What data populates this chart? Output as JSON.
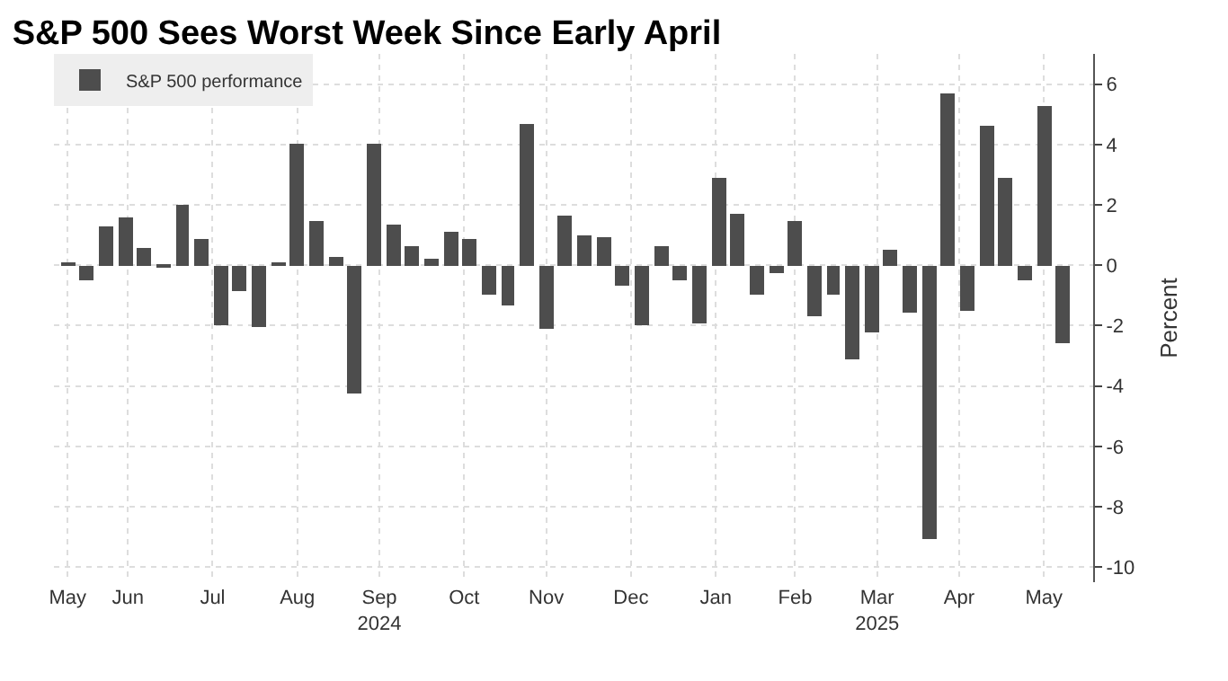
{
  "chart_data": {
    "type": "bar",
    "title": "S&P 500 Sees Worst Week Since Early April",
    "ylabel": "Percent",
    "x": [
      "2024-05-24",
      "2024-05-31",
      "2024-06-07",
      "2024-06-14",
      "2024-06-21",
      "2024-06-28",
      "2024-07-05",
      "2024-07-12",
      "2024-07-19",
      "2024-07-26",
      "2024-08-02",
      "2024-08-09",
      "2024-08-16",
      "2024-08-23",
      "2024-08-30",
      "2024-09-06",
      "2024-09-13",
      "2024-09-20",
      "2024-09-27",
      "2024-10-04",
      "2024-10-11",
      "2024-10-18",
      "2024-10-25",
      "2024-11-01",
      "2024-11-08",
      "2024-11-15",
      "2024-11-22",
      "2024-11-29",
      "2024-12-06",
      "2024-12-13",
      "2024-12-20",
      "2024-12-27",
      "2025-01-03",
      "2025-01-10",
      "2025-01-17",
      "2025-01-24",
      "2025-01-31",
      "2025-02-07",
      "2025-02-14",
      "2025-02-21",
      "2025-02-28",
      "2025-03-07",
      "2025-03-14",
      "2025-03-21",
      "2025-03-28",
      "2025-04-04",
      "2025-04-11",
      "2025-04-18",
      "2025-04-25",
      "2025-05-02",
      "2025-05-09",
      "2025-05-16",
      "2025-05-23"
    ],
    "series": [
      {
        "name": "S&P 500 performance",
        "color": "#4d4d4d",
        "values": [
          0.05,
          -0.5,
          1.3,
          1.6,
          0.6,
          -0.1,
          2.0,
          0.85,
          -2.0,
          -0.85,
          -2.05,
          0.05,
          4.0,
          1.45,
          0.25,
          -4.25,
          4.05,
          1.35,
          0.65,
          0.2,
          1.1,
          0.85,
          -0.95,
          -1.35,
          4.7,
          -2.1,
          1.65,
          1.0,
          0.95,
          -0.65,
          -2.0,
          0.65,
          -0.5,
          -1.95,
          2.9,
          1.7,
          -1.0,
          -0.25,
          1.45,
          -1.7,
          -1.0,
          -3.1,
          -2.25,
          0.5,
          -1.55,
          -9.1,
          5.7,
          -1.5,
          4.6,
          2.9,
          -0.5,
          5.3,
          -2.6
        ]
      }
    ],
    "xlim": [
      "2024-05-19",
      "2025-06-03"
    ],
    "xticks": [
      {
        "value": "2024-05-24",
        "label": "May"
      },
      {
        "value": "2024-06-15",
        "label": "Jun"
      },
      {
        "value": "2024-07-16",
        "label": "Jul"
      },
      {
        "value": "2024-08-16",
        "label": "Aug"
      },
      {
        "value": "2024-09-15",
        "label": "Sep\n2024"
      },
      {
        "value": "2024-10-16",
        "label": "Oct"
      },
      {
        "value": "2024-11-15",
        "label": "Nov"
      },
      {
        "value": "2024-12-16",
        "label": "Dec"
      },
      {
        "value": "2025-01-16",
        "label": "Jan"
      },
      {
        "value": "2025-02-14",
        "label": "Feb"
      },
      {
        "value": "2025-03-16",
        "label": "Mar\n2025"
      },
      {
        "value": "2025-04-15",
        "label": "Apr"
      },
      {
        "value": "2025-05-16",
        "label": "May"
      }
    ],
    "ylim": [
      -10.5,
      7
    ],
    "yticks": [
      -10,
      -8,
      -6,
      -4,
      -2,
      0,
      2,
      4,
      6
    ],
    "grid": true,
    "legend": "top left"
  }
}
